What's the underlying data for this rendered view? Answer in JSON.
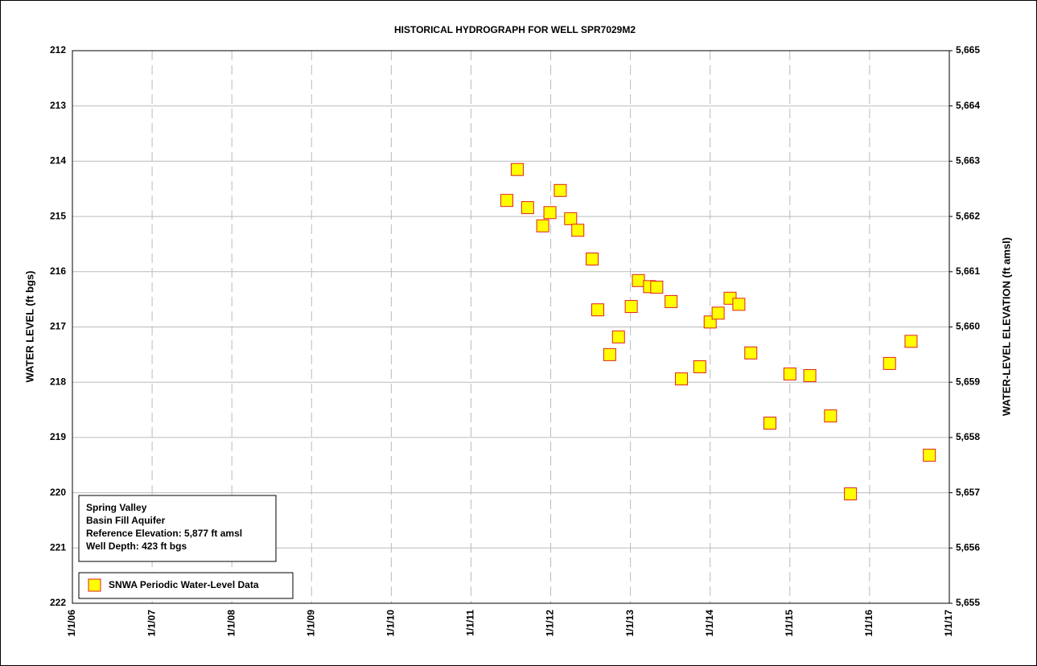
{
  "chart_data": {
    "type": "scatter",
    "title": "HISTORICAL HYDROGRAPH FOR WELL SPR7029M2",
    "y_label": "WATER LEVEL (ft bgs)",
    "y2_label": "WATER-LEVEL ELEVATION (ft amsl)",
    "annotation": [
      "Spring Valley",
      "Basin Fill Aquifer",
      "Reference Elevation: 5,877 ft amsl",
      "Well Depth: 423 ft bgs"
    ],
    "xlim": [
      2006,
      2017
    ],
    "xticks": [
      {
        "value": 2006,
        "label": "1/1/06"
      },
      {
        "value": 2007,
        "label": "1/1/07"
      },
      {
        "value": 2008,
        "label": "1/1/08"
      },
      {
        "value": 2009,
        "label": "1/1/09"
      },
      {
        "value": 2010,
        "label": "1/1/10"
      },
      {
        "value": 2011,
        "label": "1/1/11"
      },
      {
        "value": 2012,
        "label": "1/1/12"
      },
      {
        "value": 2013,
        "label": "1/1/13"
      },
      {
        "value": 2014,
        "label": "1/1/14"
      },
      {
        "value": 2015,
        "label": "1/1/15"
      },
      {
        "value": 2016,
        "label": "1/1/16"
      },
      {
        "value": 2017,
        "label": "1/1/17"
      }
    ],
    "ylim": [
      222,
      212
    ],
    "yticks": [
      212,
      213,
      214,
      215,
      216,
      217,
      218,
      219,
      220,
      221,
      222
    ],
    "y2lim": [
      5655,
      5665
    ],
    "y2ticks": [
      {
        "value": 5665,
        "label": "5,665"
      },
      {
        "value": 5664,
        "label": "5,664"
      },
      {
        "value": 5663,
        "label": "5,663"
      },
      {
        "value": 5662,
        "label": "5,662"
      },
      {
        "value": 5661,
        "label": "5,661"
      },
      {
        "value": 5660,
        "label": "5,660"
      },
      {
        "value": 5659,
        "label": "5,659"
      },
      {
        "value": 5658,
        "label": "5,658"
      },
      {
        "value": 5657,
        "label": "5,657"
      },
      {
        "value": 5656,
        "label": "5,656"
      },
      {
        "value": 5655,
        "label": "5,655"
      }
    ],
    "grid": true,
    "legend": "lower left",
    "series": [
      {
        "name": "SNWA Periodic Water-Level Data",
        "color": "#ffff00",
        "edgecolor": "#e02020",
        "x": [
          2011.45,
          2011.58,
          2011.71,
          2011.9,
          2011.99,
          2012.12,
          2012.25,
          2012.34,
          2012.52,
          2012.59,
          2012.74,
          2012.85,
          2013.01,
          2013.1,
          2013.24,
          2013.33,
          2013.51,
          2013.64,
          2013.87,
          2014.0,
          2014.1,
          2014.25,
          2014.36,
          2014.51,
          2014.75,
          2015.0,
          2015.25,
          2015.51,
          2015.76,
          2016.25,
          2016.52,
          2016.75
        ],
        "values": [
          214.71,
          214.15,
          214.84,
          215.17,
          214.93,
          214.53,
          215.04,
          215.25,
          215.77,
          216.69,
          217.5,
          217.18,
          216.63,
          216.16,
          216.27,
          216.28,
          216.54,
          217.94,
          217.72,
          216.91,
          216.75,
          216.48,
          216.59,
          217.47,
          218.74,
          217.85,
          217.88,
          218.61,
          220.02,
          217.66,
          217.26,
          219.32
        ]
      }
    ]
  }
}
